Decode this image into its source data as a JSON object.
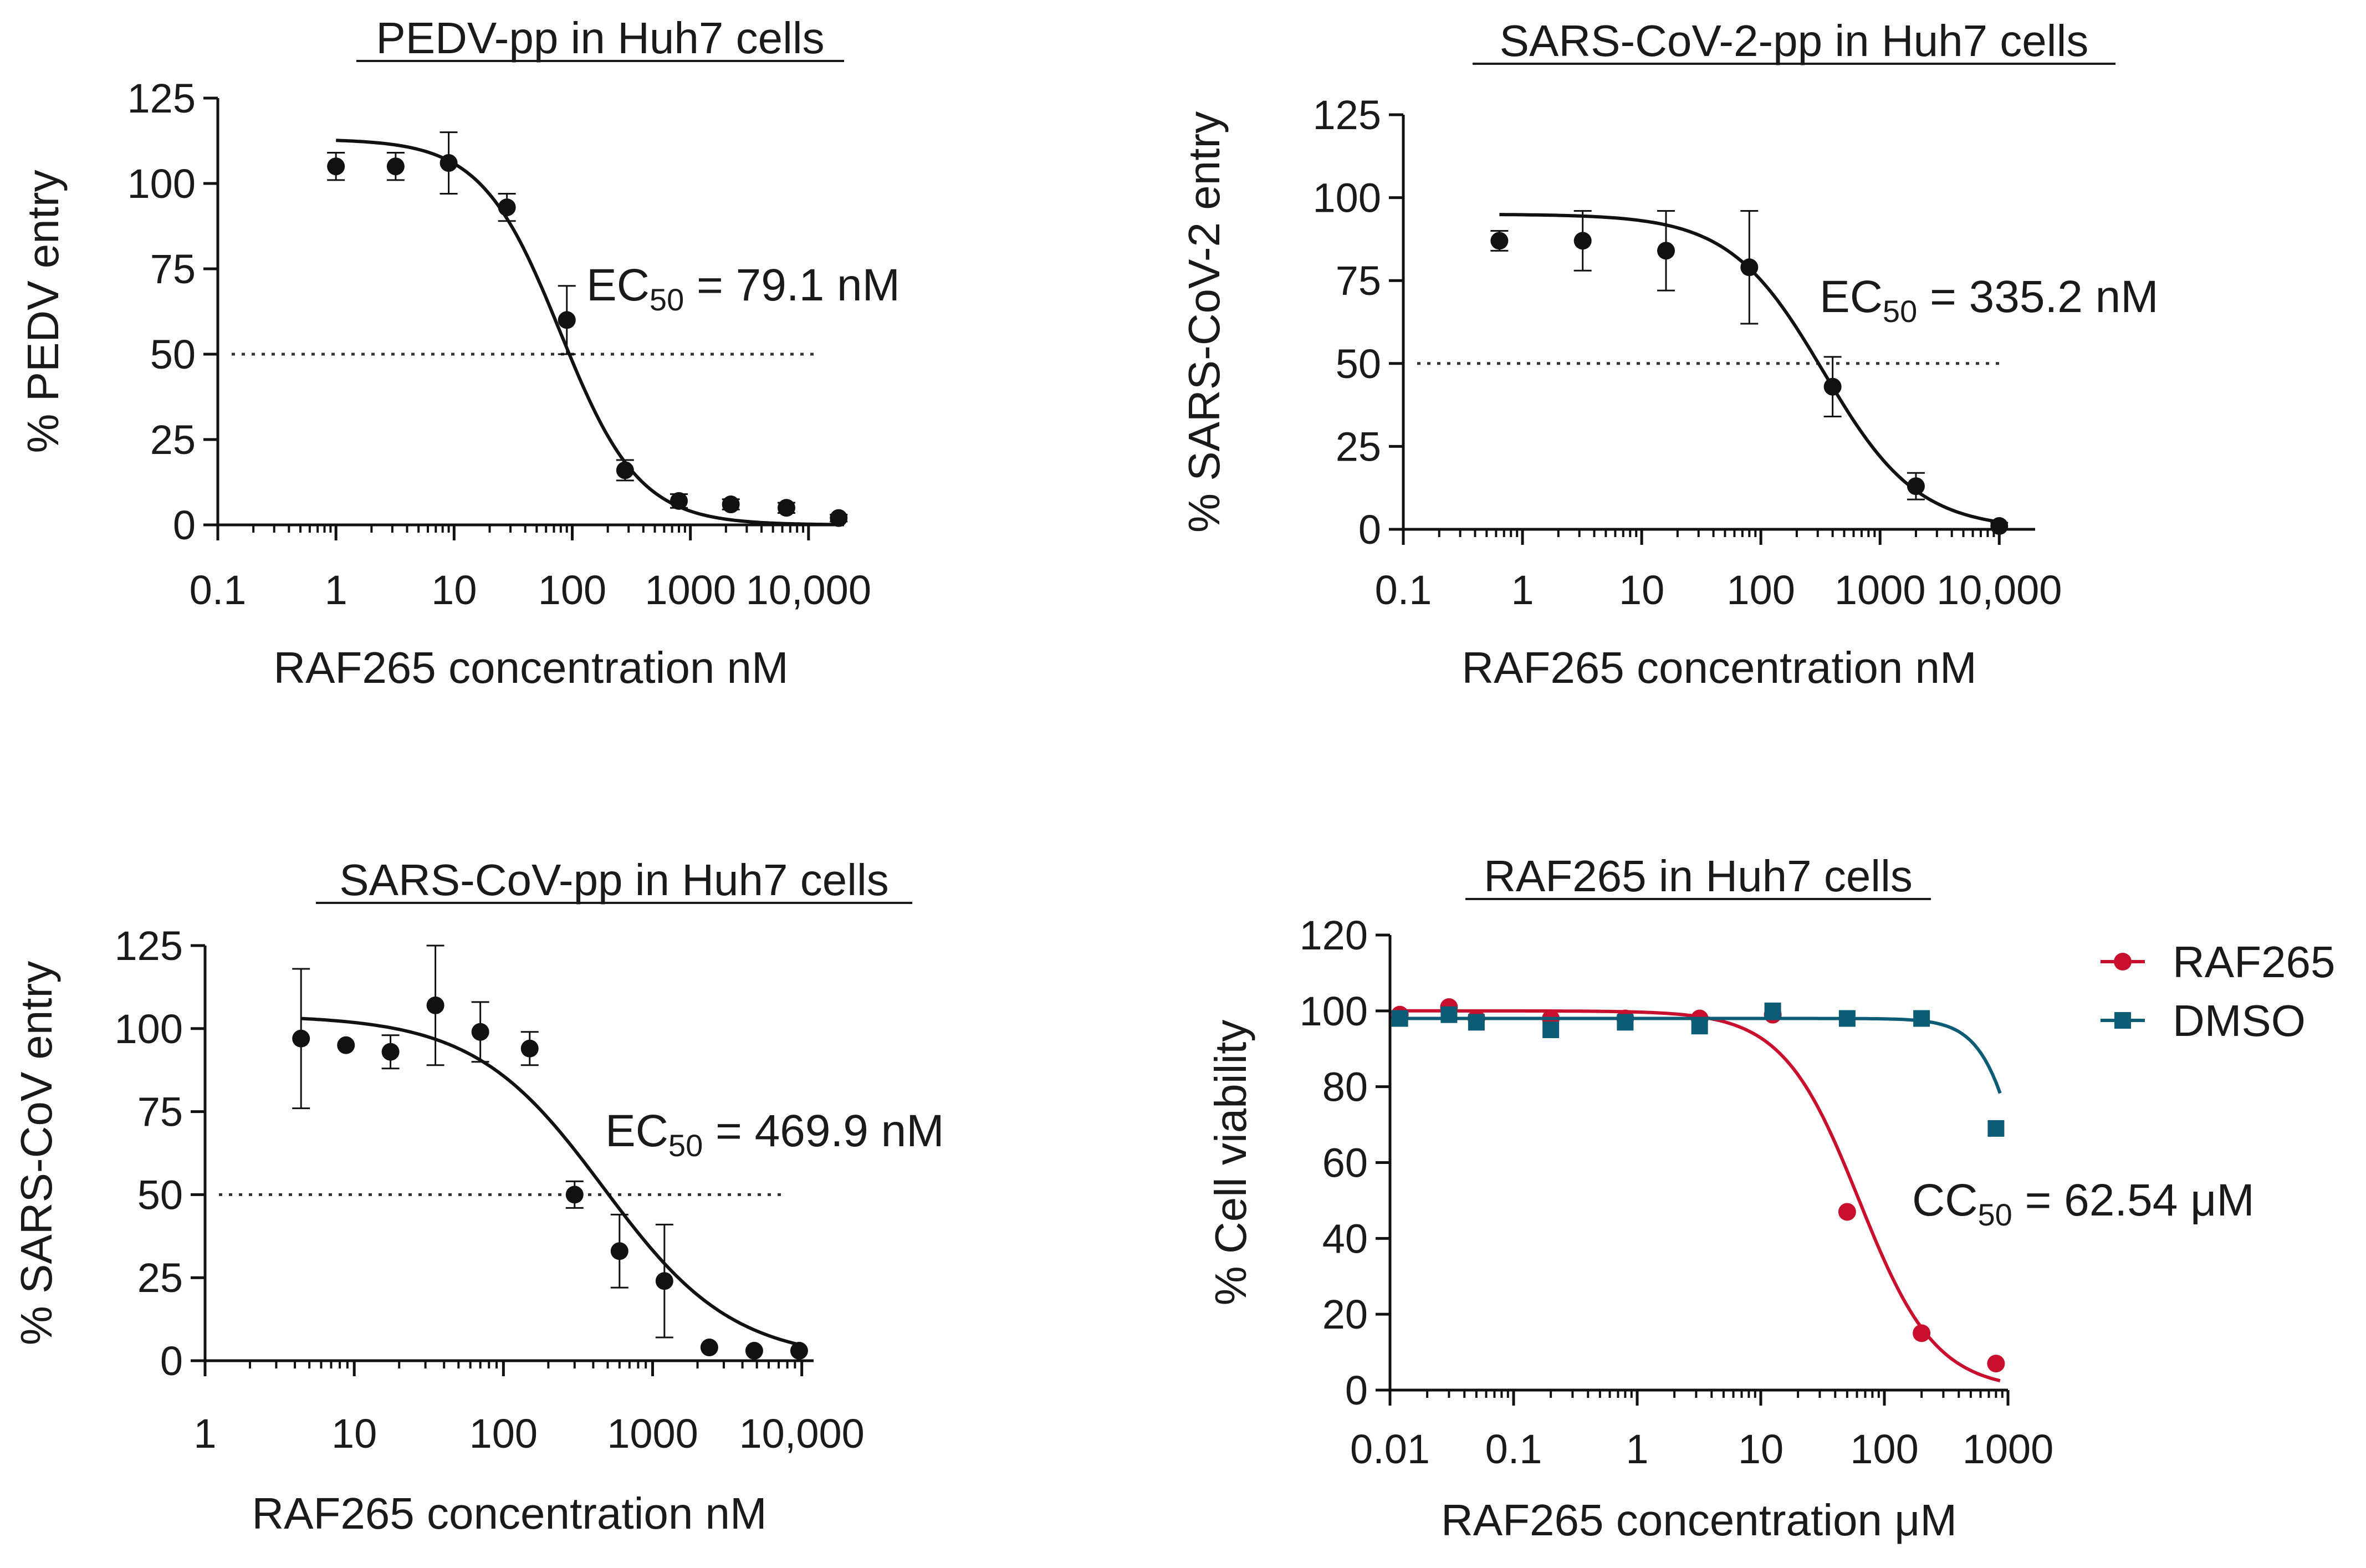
{
  "chart_data": [
    {
      "type": "scatter",
      "title": "PEDV-pp in Huh7 cells",
      "xlabel": "RAF265 concentration nM",
      "ylabel": "% PEDV entry",
      "x_scale": "log",
      "xlim": [
        0.1,
        20000
      ],
      "ylim": [
        0,
        125
      ],
      "xticks": [
        0.1,
        1,
        10,
        100,
        1000,
        10000
      ],
      "xtick_labels": [
        "0.1",
        "1",
        "10",
        "100",
        "1000",
        "10,000"
      ],
      "yticks": [
        0,
        25,
        50,
        75,
        100,
        125
      ],
      "threshold_line": 50,
      "annotation": {
        "prefix": "EC",
        "sub": "50",
        "suffix": " = 79.1 nM"
      },
      "fit": {
        "top": 113,
        "bottom": 0,
        "ec50": 79.1,
        "hill": 1.3
      },
      "series": [
        {
          "x": [
            1,
            3.2,
            9,
            28,
            90,
            280,
            800,
            2200,
            6500,
            18000
          ],
          "y": [
            105,
            105,
            106,
            93,
            60,
            16,
            7,
            6,
            5,
            2
          ],
          "err": [
            4,
            4,
            9,
            4,
            10,
            3,
            2,
            1.5,
            1.5,
            1
          ],
          "color": "#111111",
          "marker": "circle"
        }
      ]
    },
    {
      "type": "scatter",
      "title": "SARS-CoV-2-pp in Huh7 cells",
      "xlabel": "RAF265 concentration nM",
      "ylabel": "% SARS-CoV-2 entry",
      "x_scale": "log",
      "xlim": [
        0.1,
        20000
      ],
      "ylim": [
        0,
        125
      ],
      "xticks": [
        0.1,
        1,
        10,
        100,
        1000,
        10000
      ],
      "xtick_labels": [
        "0.1",
        "1",
        "10",
        "100",
        "1000",
        "10,000"
      ],
      "yticks": [
        0,
        25,
        50,
        75,
        100,
        125
      ],
      "threshold_line": 50,
      "annotation": {
        "prefix": "EC",
        "sub": "50",
        "suffix": " = 335.2 nM"
      },
      "fit": {
        "top": 95,
        "bottom": 0,
        "ec50": 335.2,
        "hill": 1.1
      },
      "series": [
        {
          "x": [
            0.64,
            3.2,
            16,
            80,
            400,
            2000,
            10000
          ],
          "y": [
            87,
            87,
            84,
            79,
            43,
            13,
            1
          ],
          "err": [
            3,
            9,
            12,
            17,
            9,
            4,
            1
          ],
          "color": "#111111",
          "marker": "circle"
        }
      ]
    },
    {
      "type": "scatter",
      "title": "SARS-CoV-pp in Huh7 cells",
      "xlabel": "RAF265 concentration nM",
      "ylabel": "% SARS-CoV entry",
      "x_scale": "log",
      "xlim": [
        1,
        12000
      ],
      "ylim": [
        0,
        125
      ],
      "xticks": [
        1,
        10,
        100,
        1000,
        10000
      ],
      "xtick_labels": [
        "1",
        "10",
        "100",
        "1000",
        "10,000"
      ],
      "yticks": [
        0,
        25,
        50,
        75,
        100,
        125
      ],
      "threshold_line": 50,
      "annotation": {
        "prefix": "EC",
        "sub": "50",
        "suffix": " = 469.9 nM"
      },
      "fit": {
        "top": 104,
        "bottom": 0,
        "ec50": 469.9,
        "hill": 1.0
      },
      "series": [
        {
          "x": [
            4.4,
            8.8,
            17.5,
            35,
            70,
            150,
            300,
            600,
            1200,
            2400,
            4800,
            9600
          ],
          "y": [
            97,
            95,
            93,
            107,
            99,
            94,
            50,
            33,
            24,
            4,
            3,
            3
          ],
          "err": [
            21,
            0,
            5,
            18,
            9,
            5,
            4,
            11,
            17,
            0,
            0,
            0
          ],
          "color": "#111111",
          "marker": "circle"
        }
      ]
    },
    {
      "type": "scatter",
      "title": "RAF265 in Huh7 cells",
      "xlabel": "RAF265 concentration μM",
      "ylabel": "% Cell viability",
      "x_scale": "log",
      "xlim": [
        0.01,
        1000
      ],
      "ylim": [
        0,
        120
      ],
      "xticks": [
        0.01,
        0.1,
        1,
        10,
        100,
        1000
      ],
      "xtick_labels": [
        "0.01",
        "0.1",
        "1",
        "10",
        "100",
        "1000"
      ],
      "yticks": [
        0,
        20,
        40,
        60,
        80,
        100,
        120
      ],
      "annotation": {
        "prefix": "CC",
        "sub": "50",
        "suffix": " = 62.54 μM"
      },
      "legend": "right",
      "series": [
        {
          "name": "RAF265",
          "color": "#c8102e",
          "marker": "circle",
          "x": [
            0.012,
            0.03,
            0.05,
            0.2,
            0.8,
            3.2,
            12.5,
            50,
            200,
            800
          ],
          "y": [
            99,
            101,
            98,
            98,
            98,
            98,
            99,
            47,
            15,
            7
          ],
          "fit": {
            "top": 100,
            "bottom": 0,
            "ec50": 62.54,
            "hill": 1.4
          }
        },
        {
          "name": "DMSO",
          "color": "#0b5c74",
          "marker": "square",
          "x": [
            0.012,
            0.03,
            0.05,
            0.2,
            0.8,
            3.2,
            12.5,
            50,
            200,
            800
          ],
          "y": [
            98,
            99,
            97,
            95,
            97,
            96,
            100,
            98,
            98,
            69
          ],
          "fit": {
            "top": 98,
            "bottom": 0,
            "ec50": 1500,
            "hill": 2.5
          }
        }
      ]
    }
  ]
}
